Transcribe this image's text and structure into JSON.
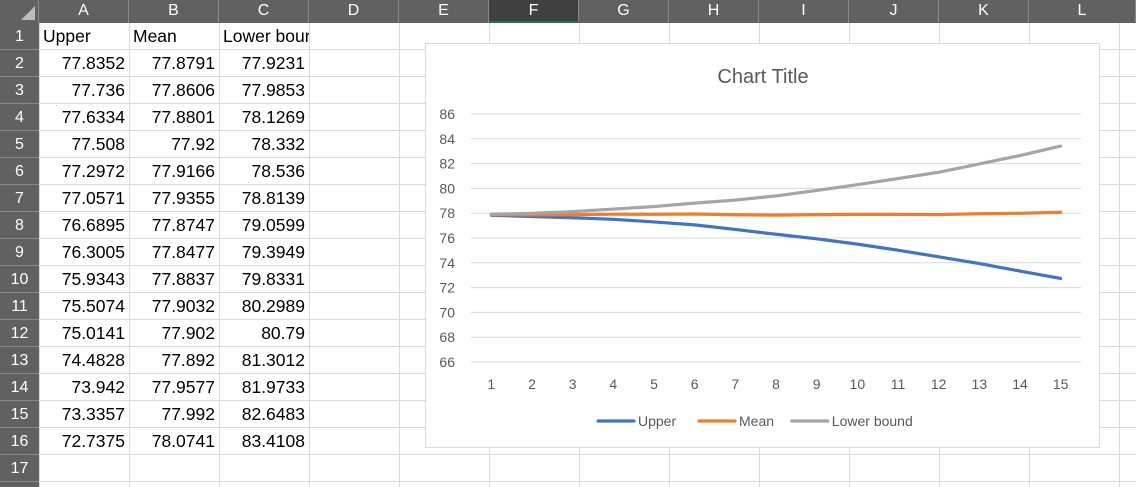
{
  "columns": [
    "A",
    "B",
    "C",
    "D",
    "E",
    "F",
    "G",
    "H",
    "I",
    "J",
    "K",
    "L"
  ],
  "selected_column": "F",
  "rows": [
    "1",
    "2",
    "3",
    "4",
    "5",
    "6",
    "7",
    "8",
    "9",
    "10",
    "11",
    "12",
    "13",
    "14",
    "15",
    "16",
    "17"
  ],
  "headers": [
    "Upper",
    "Mean",
    "Lower bound"
  ],
  "table": [
    [
      "77.8352",
      "77.8791",
      "77.9231"
    ],
    [
      "77.736",
      "77.8606",
      "77.9853"
    ],
    [
      "77.6334",
      "77.8801",
      "78.1269"
    ],
    [
      "77.508",
      "77.92",
      "78.332"
    ],
    [
      "77.2972",
      "77.9166",
      "78.536"
    ],
    [
      "77.0571",
      "77.9355",
      "78.8139"
    ],
    [
      "76.6895",
      "77.8747",
      "79.0599"
    ],
    [
      "76.3005",
      "77.8477",
      "79.3949"
    ],
    [
      "75.9343",
      "77.8837",
      "79.8331"
    ],
    [
      "75.5074",
      "77.9032",
      "80.2989"
    ],
    [
      "75.0141",
      "77.902",
      "80.79"
    ],
    [
      "74.4828",
      "77.892",
      "81.3012"
    ],
    [
      "73.942",
      "77.9577",
      "81.9733"
    ],
    [
      "73.3357",
      "77.992",
      "82.6483"
    ],
    [
      "72.7375",
      "78.0741",
      "83.4108"
    ]
  ],
  "chart_data": {
    "type": "line",
    "title": "Chart Title",
    "categories": [
      "1",
      "2",
      "3",
      "4",
      "5",
      "6",
      "7",
      "8",
      "9",
      "10",
      "11",
      "12",
      "13",
      "14",
      "15"
    ],
    "ylim": [
      66,
      86
    ],
    "yticks": [
      "66",
      "68",
      "70",
      "72",
      "74",
      "76",
      "78",
      "80",
      "82",
      "84",
      "86"
    ],
    "grid": true,
    "legend": "bottom",
    "series": [
      {
        "name": "Upper",
        "color": "#4472c4",
        "values": [
          77.8352,
          77.736,
          77.6334,
          77.508,
          77.2972,
          77.0571,
          76.6895,
          76.3005,
          75.9343,
          75.5074,
          75.0141,
          74.4828,
          73.942,
          73.3357,
          72.7375
        ]
      },
      {
        "name": "Mean",
        "color": "#ed7d31",
        "values": [
          77.8791,
          77.8606,
          77.8801,
          77.92,
          77.9166,
          77.9355,
          77.8747,
          77.8477,
          77.8837,
          77.9032,
          77.902,
          77.892,
          77.9577,
          77.992,
          78.0741
        ]
      },
      {
        "name": "Lower bound",
        "color": "#a5a5a5",
        "values": [
          77.9231,
          77.9853,
          78.1269,
          78.332,
          78.536,
          78.8139,
          79.0599,
          79.3949,
          79.8331,
          80.2989,
          80.79,
          81.3012,
          81.9733,
          82.6483,
          83.4108
        ]
      }
    ]
  }
}
